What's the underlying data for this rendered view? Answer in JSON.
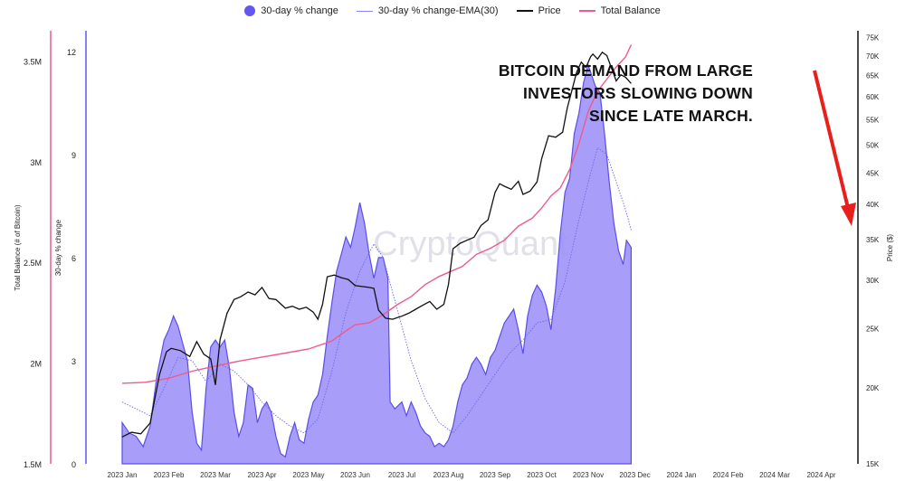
{
  "legend": {
    "items": [
      {
        "label": "30-day % change",
        "color": "#6457f0",
        "kind": "dot"
      },
      {
        "label": "30-day % change-EMA(30)",
        "color": "#8a85f5",
        "kind": "line-thin"
      },
      {
        "label": "Price",
        "color": "#111111",
        "kind": "line"
      },
      {
        "label": "Total Balance",
        "color": "#ee5b8c",
        "kind": "line"
      }
    ]
  },
  "watermark": "CryptoQuant",
  "annotation": {
    "lines": [
      "BITCOIN DEMAND FROM LARGE",
      "INVESTORS SLOWING DOWN",
      "SINCE LATE MARCH."
    ]
  },
  "chart_data": {
    "type": "area",
    "x_labels": [
      "2023 Jan",
      "2023 Feb",
      "2023 Mar",
      "2023 Apr",
      "2023 May",
      "2023 Jun",
      "2023 Jul",
      "2023 Aug",
      "2023 Sep",
      "2023 Oct",
      "2023 Nov",
      "2023 Dec",
      "2024 Jan",
      "2024 Feb",
      "2024 Mar",
      "2024 Apr"
    ],
    "axes": {
      "balance": {
        "label": "Total Balance (# of Bitcoin)",
        "ticks": [
          "1.5M",
          "2M",
          "2.5M",
          "3M",
          "3.5M"
        ],
        "range": [
          1500000,
          3650000
        ],
        "color": "#ee5b8c"
      },
      "pct": {
        "label": "30-day % change",
        "ticks": [
          "0",
          "3",
          "6",
          "9",
          "12"
        ],
        "range": [
          0,
          12.6
        ],
        "color": "#6457f0"
      },
      "price": {
        "label": "Price ($)",
        "ticks": [
          "15K",
          "20K",
          "25K",
          "30K",
          "35K",
          "40K",
          "45K",
          "50K",
          "55K",
          "60K",
          "65K",
          "70K",
          "75K"
        ],
        "range": [
          15000,
          77000
        ],
        "scale": "log"
      }
    },
    "series": [
      {
        "name": "30-day % change",
        "color": "#6457f0",
        "points": [
          [
            0,
            1.2
          ],
          [
            0.15,
            0.9
          ],
          [
            0.3,
            0.8
          ],
          [
            0.45,
            0.5
          ],
          [
            0.6,
            1.1
          ],
          [
            0.75,
            2.6
          ],
          [
            0.9,
            3.6
          ],
          [
            1.0,
            3.9
          ],
          [
            1.1,
            4.3
          ],
          [
            1.2,
            4.0
          ],
          [
            1.3,
            3.5
          ],
          [
            1.4,
            3.0
          ],
          [
            1.5,
            1.5
          ],
          [
            1.6,
            0.6
          ],
          [
            1.7,
            0.4
          ],
          [
            1.8,
            2.2
          ],
          [
            1.9,
            3.4
          ],
          [
            2.0,
            3.6
          ],
          [
            2.1,
            3.4
          ],
          [
            2.2,
            3.6
          ],
          [
            2.3,
            2.8
          ],
          [
            2.4,
            1.5
          ],
          [
            2.5,
            0.8
          ],
          [
            2.6,
            1.2
          ],
          [
            2.7,
            2.3
          ],
          [
            2.8,
            2.2
          ],
          [
            2.9,
            1.2
          ],
          [
            3.0,
            1.6
          ],
          [
            3.1,
            1.8
          ],
          [
            3.2,
            1.5
          ],
          [
            3.3,
            0.8
          ],
          [
            3.4,
            0.3
          ],
          [
            3.5,
            0.2
          ],
          [
            3.6,
            0.8
          ],
          [
            3.7,
            1.2
          ],
          [
            3.8,
            0.7
          ],
          [
            3.9,
            0.6
          ],
          [
            4.0,
            1.3
          ],
          [
            4.1,
            1.8
          ],
          [
            4.2,
            2.0
          ],
          [
            4.3,
            2.6
          ],
          [
            4.4,
            3.7
          ],
          [
            4.5,
            4.7
          ],
          [
            4.6,
            5.6
          ],
          [
            4.7,
            6.1
          ],
          [
            4.8,
            6.6
          ],
          [
            4.9,
            6.3
          ],
          [
            5.0,
            6.9
          ],
          [
            5.1,
            7.6
          ],
          [
            5.2,
            7.0
          ],
          [
            5.3,
            6.1
          ],
          [
            5.4,
            5.4
          ],
          [
            5.5,
            6.0
          ],
          [
            5.6,
            6.0
          ],
          [
            5.7,
            5.4
          ],
          [
            5.75,
            1.8
          ],
          [
            5.85,
            1.6
          ],
          [
            6.0,
            1.8
          ],
          [
            6.1,
            1.4
          ],
          [
            6.2,
            1.8
          ],
          [
            6.3,
            1.5
          ],
          [
            6.4,
            1.1
          ],
          [
            6.5,
            0.9
          ],
          [
            6.6,
            0.8
          ],
          [
            6.7,
            0.5
          ],
          [
            6.8,
            0.6
          ],
          [
            6.9,
            0.5
          ],
          [
            7.0,
            0.7
          ],
          [
            7.1,
            1.1
          ],
          [
            7.2,
            1.8
          ],
          [
            7.3,
            2.3
          ],
          [
            7.4,
            2.5
          ],
          [
            7.5,
            2.9
          ],
          [
            7.6,
            3.1
          ],
          [
            7.7,
            2.9
          ],
          [
            7.8,
            2.6
          ],
          [
            7.9,
            3.1
          ],
          [
            8.0,
            3.3
          ],
          [
            8.1,
            3.7
          ],
          [
            8.2,
            4.1
          ],
          [
            8.3,
            4.3
          ],
          [
            8.4,
            4.5
          ],
          [
            8.5,
            3.9
          ],
          [
            8.6,
            3.2
          ],
          [
            8.7,
            4.3
          ],
          [
            8.8,
            4.9
          ],
          [
            8.9,
            5.2
          ],
          [
            9.0,
            5.0
          ],
          [
            9.1,
            4.6
          ],
          [
            9.2,
            3.9
          ],
          [
            9.3,
            5.1
          ],
          [
            9.4,
            6.7
          ],
          [
            9.5,
            7.9
          ],
          [
            9.6,
            8.3
          ],
          [
            9.7,
            9.6
          ],
          [
            9.8,
            10.2
          ],
          [
            9.9,
            11.1
          ],
          [
            10.0,
            11.6
          ],
          [
            10.1,
            11.2
          ],
          [
            10.15,
            11.0
          ],
          [
            10.25,
            10.8
          ],
          [
            10.35,
            9.6
          ],
          [
            10.45,
            8.2
          ],
          [
            10.55,
            7.0
          ],
          [
            10.65,
            6.2
          ],
          [
            10.75,
            5.8
          ],
          [
            10.82,
            6.5
          ],
          [
            10.92,
            6.3
          ]
        ]
      },
      {
        "name": "30-day % change-EMA(30)",
        "color": "#6f6ae8",
        "points": [
          [
            0,
            1.8
          ],
          [
            0.3,
            1.6
          ],
          [
            0.6,
            1.4
          ],
          [
            0.9,
            2.2
          ],
          [
            1.2,
            3.1
          ],
          [
            1.5,
            3.0
          ],
          [
            1.8,
            2.4
          ],
          [
            2.1,
            2.9
          ],
          [
            2.4,
            2.7
          ],
          [
            2.7,
            2.3
          ],
          [
            3.0,
            1.8
          ],
          [
            3.3,
            1.4
          ],
          [
            3.6,
            1.1
          ],
          [
            3.9,
            0.9
          ],
          [
            4.2,
            1.3
          ],
          [
            4.5,
            2.7
          ],
          [
            4.8,
            4.4
          ],
          [
            5.1,
            5.6
          ],
          [
            5.4,
            6.4
          ],
          [
            5.6,
            6.0
          ],
          [
            5.9,
            4.5
          ],
          [
            6.2,
            3.0
          ],
          [
            6.5,
            1.9
          ],
          [
            6.8,
            1.2
          ],
          [
            7.1,
            0.9
          ],
          [
            7.4,
            1.4
          ],
          [
            7.7,
            2.0
          ],
          [
            8.0,
            2.6
          ],
          [
            8.3,
            3.2
          ],
          [
            8.6,
            3.6
          ],
          [
            8.9,
            4.1
          ],
          [
            9.2,
            4.2
          ],
          [
            9.5,
            5.3
          ],
          [
            9.8,
            7.1
          ],
          [
            10.0,
            8.2
          ],
          [
            10.2,
            9.2
          ],
          [
            10.4,
            9.0
          ],
          [
            10.6,
            8.2
          ],
          [
            10.8,
            7.4
          ],
          [
            10.92,
            6.8
          ]
        ]
      },
      {
        "name": "Price",
        "color": "#111111",
        "points": [
          [
            0,
            16600
          ],
          [
            0.2,
            16900
          ],
          [
            0.4,
            16800
          ],
          [
            0.6,
            17500
          ],
          [
            0.8,
            21000
          ],
          [
            0.95,
            22900
          ],
          [
            1.05,
            23200
          ],
          [
            1.25,
            23000
          ],
          [
            1.45,
            22500
          ],
          [
            1.6,
            23800
          ],
          [
            1.75,
            22700
          ],
          [
            1.9,
            22300
          ],
          [
            2.0,
            20200
          ],
          [
            2.1,
            24000
          ],
          [
            2.25,
            26500
          ],
          [
            2.4,
            27900
          ],
          [
            2.55,
            28200
          ],
          [
            2.7,
            28700
          ],
          [
            2.85,
            28400
          ],
          [
            3.0,
            29200
          ],
          [
            3.15,
            28000
          ],
          [
            3.3,
            27900
          ],
          [
            3.5,
            27000
          ],
          [
            3.65,
            27200
          ],
          [
            3.8,
            26900
          ],
          [
            3.95,
            27100
          ],
          [
            4.1,
            26600
          ],
          [
            4.2,
            25900
          ],
          [
            4.3,
            27400
          ],
          [
            4.4,
            30400
          ],
          [
            4.55,
            30600
          ],
          [
            4.7,
            30300
          ],
          [
            4.85,
            30100
          ],
          [
            5.0,
            29400
          ],
          [
            5.15,
            29300
          ],
          [
            5.3,
            29200
          ],
          [
            5.4,
            29100
          ],
          [
            5.5,
            26800
          ],
          [
            5.65,
            26000
          ],
          [
            5.8,
            25900
          ],
          [
            6.0,
            26200
          ],
          [
            6.15,
            26500
          ],
          [
            6.3,
            26900
          ],
          [
            6.45,
            27300
          ],
          [
            6.6,
            27700
          ],
          [
            6.75,
            26900
          ],
          [
            6.9,
            27400
          ],
          [
            7.0,
            29500
          ],
          [
            7.1,
            33800
          ],
          [
            7.25,
            34500
          ],
          [
            7.4,
            34900
          ],
          [
            7.55,
            35300
          ],
          [
            7.7,
            36900
          ],
          [
            7.85,
            37700
          ],
          [
            8.0,
            41800
          ],
          [
            8.1,
            43200
          ],
          [
            8.2,
            42800
          ],
          [
            8.35,
            42300
          ],
          [
            8.5,
            43600
          ],
          [
            8.6,
            41500
          ],
          [
            8.75,
            42000
          ],
          [
            8.9,
            43500
          ],
          [
            9.0,
            47500
          ],
          [
            9.15,
            51800
          ],
          [
            9.3,
            51500
          ],
          [
            9.45,
            52500
          ],
          [
            9.55,
            57500
          ],
          [
            9.65,
            61500
          ],
          [
            9.75,
            65800
          ],
          [
            9.85,
            68400
          ],
          [
            9.95,
            67000
          ],
          [
            10.05,
            69800
          ],
          [
            10.1,
            70500
          ],
          [
            10.2,
            69200
          ],
          [
            10.3,
            71000
          ],
          [
            10.4,
            70100
          ],
          [
            10.5,
            66800
          ],
          [
            10.6,
            63700
          ],
          [
            10.7,
            65200
          ],
          [
            10.8,
            64600
          ],
          [
            10.92,
            63100
          ]
        ]
      },
      {
        "name": "Total Balance",
        "color": "#ee5b8c",
        "points": [
          [
            0,
            1900000
          ],
          [
            0.5,
            1905000
          ],
          [
            1.0,
            1925000
          ],
          [
            1.5,
            1960000
          ],
          [
            2.0,
            1985000
          ],
          [
            2.5,
            2010000
          ],
          [
            3.0,
            2030000
          ],
          [
            3.5,
            2050000
          ],
          [
            4.0,
            2070000
          ],
          [
            4.5,
            2110000
          ],
          [
            4.8,
            2160000
          ],
          [
            5.0,
            2190000
          ],
          [
            5.3,
            2200000
          ],
          [
            5.6,
            2240000
          ],
          [
            5.9,
            2290000
          ],
          [
            6.2,
            2330000
          ],
          [
            6.5,
            2390000
          ],
          [
            6.8,
            2430000
          ],
          [
            7.0,
            2450000
          ],
          [
            7.3,
            2480000
          ],
          [
            7.6,
            2540000
          ],
          [
            7.9,
            2570000
          ],
          [
            8.2,
            2610000
          ],
          [
            8.5,
            2680000
          ],
          [
            8.8,
            2720000
          ],
          [
            9.0,
            2770000
          ],
          [
            9.2,
            2830000
          ],
          [
            9.4,
            2870000
          ],
          [
            9.6,
            2960000
          ],
          [
            9.8,
            3090000
          ],
          [
            10.0,
            3250000
          ],
          [
            10.2,
            3350000
          ],
          [
            10.4,
            3410000
          ],
          [
            10.6,
            3470000
          ],
          [
            10.8,
            3520000
          ],
          [
            10.92,
            3580000
          ]
        ]
      }
    ]
  }
}
